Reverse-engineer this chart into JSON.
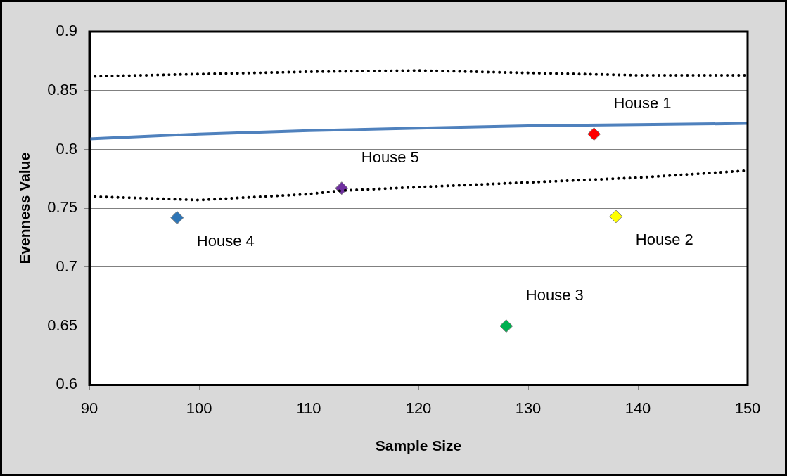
{
  "chart_data": {
    "type": "scatter",
    "xlabel": "Sample Size",
    "ylabel": "Evenness Value",
    "xlim": [
      90,
      150
    ],
    "xticks": [
      90,
      100,
      110,
      120,
      130,
      140,
      150
    ],
    "ylim": [
      0.6,
      0.9
    ],
    "yticks": [
      0.6,
      0.65,
      0.7,
      0.75,
      0.8,
      0.85,
      0.9
    ],
    "grid": "y",
    "legend": false,
    "series": [
      {
        "type": "line",
        "color": "#000000",
        "line_style": "dotted",
        "marker": "none",
        "x": [
          90,
          100,
          110,
          120,
          130,
          140,
          150
        ],
        "values": [
          0.862,
          0.864,
          0.866,
          0.867,
          0.865,
          0.863,
          0.863
        ]
      },
      {
        "type": "line",
        "color": "#4f81bd",
        "line_style": "solid",
        "marker": "none",
        "x": [
          90,
          100,
          110,
          120,
          130,
          140,
          150
        ],
        "values": [
          0.809,
          0.813,
          0.816,
          0.818,
          0.82,
          0.821,
          0.822
        ]
      },
      {
        "type": "line",
        "color": "#000000",
        "line_style": "dotted",
        "marker": "none",
        "x": [
          90,
          100,
          110,
          113,
          120,
          130,
          140,
          150
        ],
        "values": [
          0.76,
          0.757,
          0.762,
          0.765,
          0.768,
          0.772,
          0.776,
          0.782
        ]
      },
      {
        "type": "scatter",
        "marker": "diamond",
        "x": [
          98,
          113,
          128,
          136,
          138
        ],
        "values": [
          0.742,
          0.767,
          0.65,
          0.813,
          0.743
        ],
        "colors": [
          "#2e75b6",
          "#7030a0",
          "#00b050",
          "#ff0000",
          "#ffff00"
        ]
      }
    ],
    "annotations": [
      {
        "text": "House 4",
        "x": 98,
        "y": 0.742
      },
      {
        "text": "House 5",
        "x": 113,
        "y": 0.767
      },
      {
        "text": "House 3",
        "x": 128,
        "y": 0.65
      },
      {
        "text": "House 1",
        "x": 136,
        "y": 0.813
      },
      {
        "text": "House 2",
        "x": 138,
        "y": 0.743
      }
    ]
  }
}
